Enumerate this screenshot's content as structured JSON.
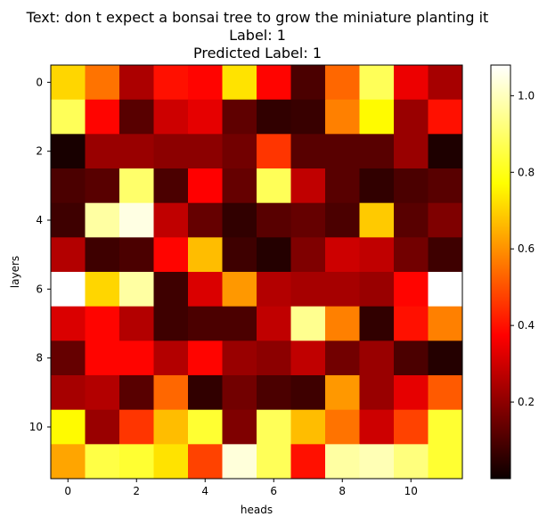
{
  "chart_data": {
    "type": "heatmap",
    "title_lines": [
      "Text: don t expect a bonsai tree to grow the miniature planting it",
      "Label: 1",
      "Predicted Label: 1"
    ],
    "xlabel": "heads",
    "ylabel": "layers",
    "colormap": "hot",
    "vmin": 0.0,
    "vmax": 1.08,
    "x_ticks": [
      0,
      2,
      4,
      6,
      8,
      10
    ],
    "y_ticks": [
      0,
      2,
      4,
      6,
      8,
      10
    ],
    "colorbar_ticks": [
      0.2,
      0.4,
      0.6,
      0.8,
      1.0
    ],
    "colorbar_tick_labels": [
      "0.2",
      "0.4",
      "0.6",
      "0.8",
      "1.0"
    ],
    "grid": false,
    "rows": 12,
    "cols": 12,
    "values": [
      [
        0.74,
        0.58,
        0.25,
        0.42,
        0.4,
        0.76,
        0.4,
        0.1,
        0.56,
        0.9,
        0.35,
        0.24
      ],
      [
        0.9,
        0.4,
        0.12,
        0.3,
        0.34,
        0.13,
        0.06,
        0.07,
        0.6,
        0.8,
        0.22,
        0.42
      ],
      [
        0.02,
        0.22,
        0.22,
        0.2,
        0.2,
        0.16,
        0.48,
        0.12,
        0.12,
        0.12,
        0.22,
        0.03
      ],
      [
        0.1,
        0.12,
        0.92,
        0.1,
        0.38,
        0.14,
        0.9,
        0.28,
        0.12,
        0.06,
        0.1,
        0.12
      ],
      [
        0.08,
        0.98,
        1.05,
        0.28,
        0.14,
        0.06,
        0.12,
        0.14,
        0.1,
        0.72,
        0.12,
        0.18
      ],
      [
        0.26,
        0.08,
        0.1,
        0.4,
        0.7,
        0.08,
        0.04,
        0.18,
        0.3,
        0.28,
        0.16,
        0.08
      ],
      [
        1.08,
        0.74,
        0.98,
        0.08,
        0.32,
        0.64,
        0.26,
        0.24,
        0.24,
        0.22,
        0.4,
        1.08
      ],
      [
        0.32,
        0.4,
        0.26,
        0.08,
        0.1,
        0.1,
        0.28,
        0.96,
        0.6,
        0.06,
        0.42,
        0.6
      ],
      [
        0.14,
        0.4,
        0.4,
        0.26,
        0.4,
        0.22,
        0.2,
        0.28,
        0.16,
        0.22,
        0.1,
        0.04
      ],
      [
        0.24,
        0.26,
        0.12,
        0.56,
        0.06,
        0.16,
        0.1,
        0.08,
        0.64,
        0.22,
        0.34,
        0.54
      ],
      [
        0.8,
        0.22,
        0.48,
        0.7,
        0.86,
        0.18,
        0.9,
        0.7,
        0.58,
        0.3,
        0.5,
        0.86
      ],
      [
        0.66,
        0.88,
        0.86,
        0.76,
        0.5,
        1.04,
        0.9,
        0.42,
        0.98,
        1.0,
        0.94,
        0.86
      ]
    ]
  }
}
